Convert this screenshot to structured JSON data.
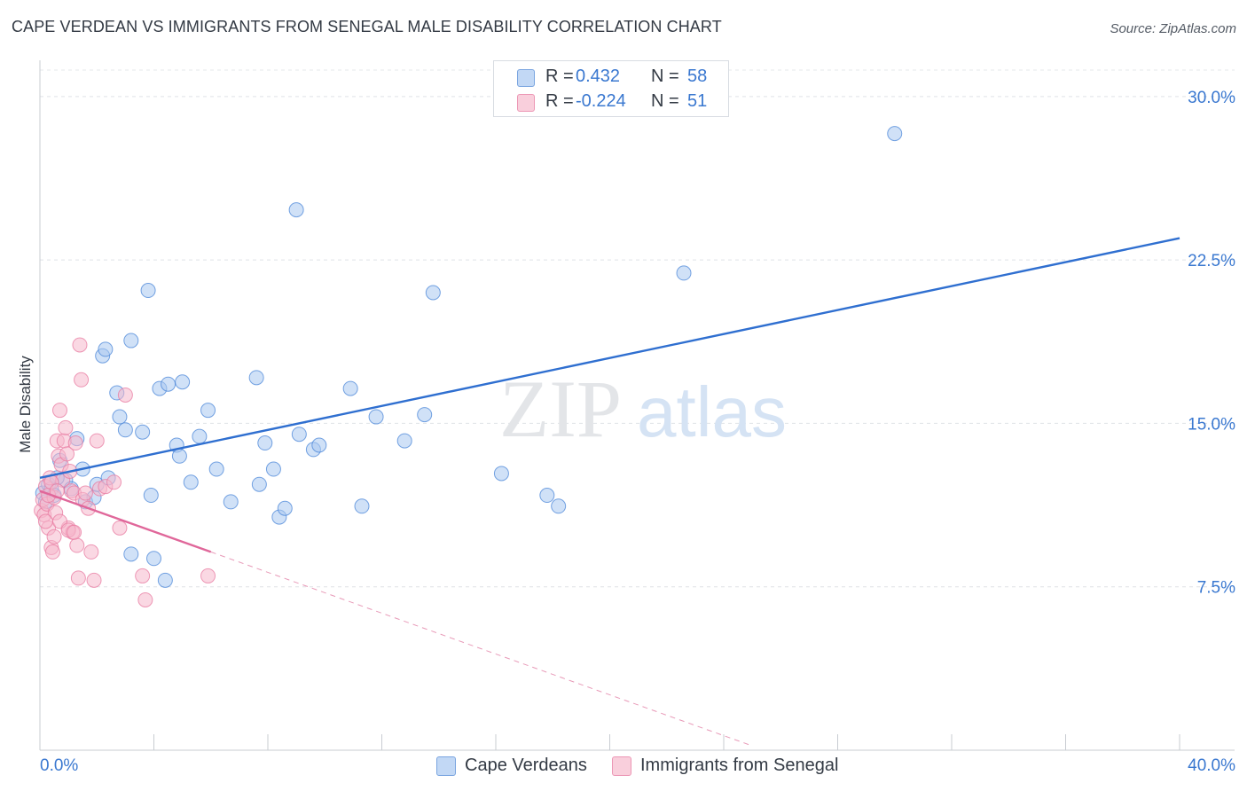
{
  "title": "CAPE VERDEAN VS IMMIGRANTS FROM SENEGAL MALE DISABILITY CORRELATION CHART",
  "source": "Source: ZipAtlas.com",
  "watermark": {
    "zip": "ZIP",
    "atlas": "atlas"
  },
  "legend": {
    "rows": [
      {
        "r_label": "R =",
        "r_value": "0.432",
        "n_label": "N =",
        "n_value": "58",
        "color": "#a9c8f0"
      },
      {
        "r_label": "R =",
        "r_value": "-0.224",
        "n_label": "N =",
        "n_value": "51",
        "color": "#f5b8cc"
      }
    ]
  },
  "bottom_legend": [
    {
      "label": "Cape Verdeans",
      "color": "#a9c8f0"
    },
    {
      "label": "Immigrants from Senegal",
      "color": "#f5b8cc"
    }
  ],
  "chart_data": {
    "type": "scatter",
    "ylabel": "Male Disability",
    "xlim": [
      0,
      40
    ],
    "ylim": [
      0,
      31.5
    ],
    "x_tick_labels": [
      "0.0%",
      "40.0%"
    ],
    "y_ticks": [
      7.5,
      15.0,
      22.5,
      30.0
    ],
    "y_tick_labels": [
      "7.5%",
      "15.0%",
      "22.5%",
      "30.0%"
    ],
    "grid": true,
    "series": [
      {
        "name": "Cape Verdeans",
        "color": "#4a86d8",
        "fill": "#a9c8f0",
        "points": [
          [
            0.1,
            11.8
          ],
          [
            0.2,
            11.4
          ],
          [
            0.3,
            12.2
          ],
          [
            0.4,
            12.0
          ],
          [
            0.5,
            11.7
          ],
          [
            0.7,
            13.3
          ],
          [
            0.9,
            12.4
          ],
          [
            1.3,
            14.3
          ],
          [
            1.5,
            12.9
          ],
          [
            1.6,
            11.4
          ],
          [
            1.9,
            11.6
          ],
          [
            2.0,
            12.2
          ],
          [
            2.2,
            18.1
          ],
          [
            2.3,
            18.4
          ],
          [
            2.4,
            12.5
          ],
          [
            2.7,
            16.4
          ],
          [
            2.8,
            15.3
          ],
          [
            3.0,
            14.7
          ],
          [
            3.2,
            18.8
          ],
          [
            3.6,
            14.6
          ],
          [
            3.8,
            21.1
          ],
          [
            3.9,
            11.7
          ],
          [
            4.2,
            16.6
          ],
          [
            4.5,
            16.8
          ],
          [
            4.8,
            14.0
          ],
          [
            4.9,
            13.5
          ],
          [
            5.0,
            16.9
          ],
          [
            5.3,
            12.3
          ],
          [
            5.6,
            14.4
          ],
          [
            5.9,
            15.6
          ],
          [
            6.2,
            12.9
          ],
          [
            6.7,
            11.4
          ],
          [
            7.6,
            17.1
          ],
          [
            7.7,
            12.2
          ],
          [
            7.9,
            14.1
          ],
          [
            8.2,
            12.9
          ],
          [
            8.4,
            10.7
          ],
          [
            8.6,
            11.1
          ],
          [
            9.0,
            24.8
          ],
          [
            9.1,
            14.5
          ],
          [
            9.6,
            13.8
          ],
          [
            9.8,
            14.0
          ],
          [
            10.9,
            16.6
          ],
          [
            11.3,
            11.2
          ],
          [
            11.8,
            15.3
          ],
          [
            12.8,
            14.2
          ],
          [
            13.5,
            15.4
          ],
          [
            13.8,
            21.0
          ],
          [
            16.2,
            12.7
          ],
          [
            17.8,
            11.7
          ],
          [
            18.2,
            11.2
          ],
          [
            22.6,
            21.9
          ],
          [
            30.0,
            28.3
          ],
          [
            3.2,
            9.0
          ],
          [
            4.0,
            8.8
          ],
          [
            4.4,
            7.8
          ],
          [
            1.1,
            12.0
          ],
          [
            0.6,
            12.5
          ]
        ]
      },
      {
        "name": "Immigrants from Senegal",
        "color": "#e87aa0",
        "fill": "#f5b8cc",
        "points": [
          [
            0.05,
            11.0
          ],
          [
            0.1,
            11.5
          ],
          [
            0.15,
            10.8
          ],
          [
            0.2,
            12.1
          ],
          [
            0.25,
            11.3
          ],
          [
            0.3,
            10.2
          ],
          [
            0.35,
            12.5
          ],
          [
            0.4,
            9.3
          ],
          [
            0.45,
            9.1
          ],
          [
            0.5,
            11.6
          ],
          [
            0.55,
            10.9
          ],
          [
            0.6,
            14.2
          ],
          [
            0.65,
            13.5
          ],
          [
            0.7,
            15.6
          ],
          [
            0.75,
            13.1
          ],
          [
            0.8,
            12.4
          ],
          [
            0.85,
            14.2
          ],
          [
            0.9,
            14.8
          ],
          [
            0.95,
            13.6
          ],
          [
            1.0,
            10.2
          ],
          [
            1.05,
            12.8
          ],
          [
            1.1,
            11.9
          ],
          [
            1.15,
            10.0
          ],
          [
            1.2,
            11.8
          ],
          [
            1.25,
            14.1
          ],
          [
            1.3,
            9.4
          ],
          [
            1.35,
            7.9
          ],
          [
            1.4,
            18.6
          ],
          [
            1.45,
            17.0
          ],
          [
            1.5,
            11.5
          ],
          [
            1.6,
            11.8
          ],
          [
            1.7,
            11.1
          ],
          [
            1.8,
            9.1
          ],
          [
            1.9,
            7.8
          ],
          [
            2.0,
            14.2
          ],
          [
            2.1,
            12.0
          ],
          [
            2.3,
            12.1
          ],
          [
            2.6,
            12.3
          ],
          [
            2.8,
            10.2
          ],
          [
            3.0,
            16.3
          ],
          [
            3.6,
            8.0
          ],
          [
            3.7,
            6.9
          ],
          [
            5.9,
            8.0
          ],
          [
            0.5,
            9.8
          ],
          [
            0.7,
            10.5
          ],
          [
            1.0,
            10.1
          ],
          [
            0.3,
            11.7
          ],
          [
            0.2,
            10.5
          ],
          [
            0.4,
            12.3
          ],
          [
            1.2,
            10.0
          ],
          [
            0.6,
            11.9
          ]
        ]
      }
    ],
    "trendlines": [
      {
        "series": "Cape Verdeans",
        "x": [
          0,
          40
        ],
        "y": [
          12.5,
          23.5
        ],
        "style": "solid",
        "color": "#2f6fd0"
      },
      {
        "series": "Immigrants from Senegal",
        "x": [
          0,
          6
        ],
        "y": [
          11.9,
          9.1
        ],
        "style": "solid",
        "color": "#e0679a"
      },
      {
        "series": "Immigrants from Senegal",
        "x": [
          6,
          25
        ],
        "y": [
          9.1,
          0.2
        ],
        "style": "dashed",
        "color": "#e89ab8"
      }
    ]
  }
}
